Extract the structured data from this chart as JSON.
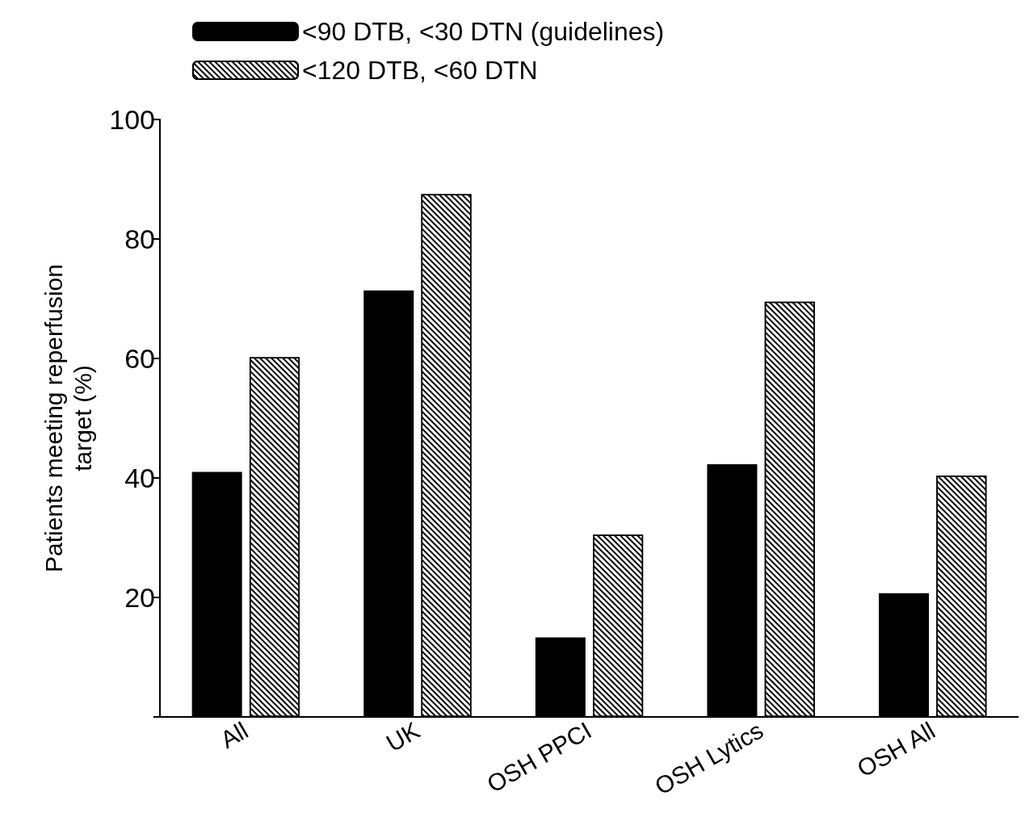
{
  "chart_data": {
    "type": "bar",
    "ylabel": "Patients meeting reperfusion\ntarget (%)",
    "categories": [
      "All",
      "UK",
      "OSH PPCI",
      "OSH Lytics",
      "OSH All"
    ],
    "series": [
      {
        "name": "<90 DTB, <30 DTN (guidelines)",
        "color": "#000000",
        "values": [
          41,
          71.4,
          13.3,
          42.3,
          20.7
        ]
      },
      {
        "name": "<120 DTB, <60 DTN",
        "color": "#ffffff",
        "values": [
          60.2,
          87.5,
          30.5,
          69.5,
          40.4
        ]
      }
    ],
    "ylim": [
      0,
      100
    ],
    "yticks": [
      {
        "value": 0,
        "label": null
      },
      20,
      40,
      60,
      80,
      100
    ],
    "grid": false,
    "legend": "top left"
  }
}
